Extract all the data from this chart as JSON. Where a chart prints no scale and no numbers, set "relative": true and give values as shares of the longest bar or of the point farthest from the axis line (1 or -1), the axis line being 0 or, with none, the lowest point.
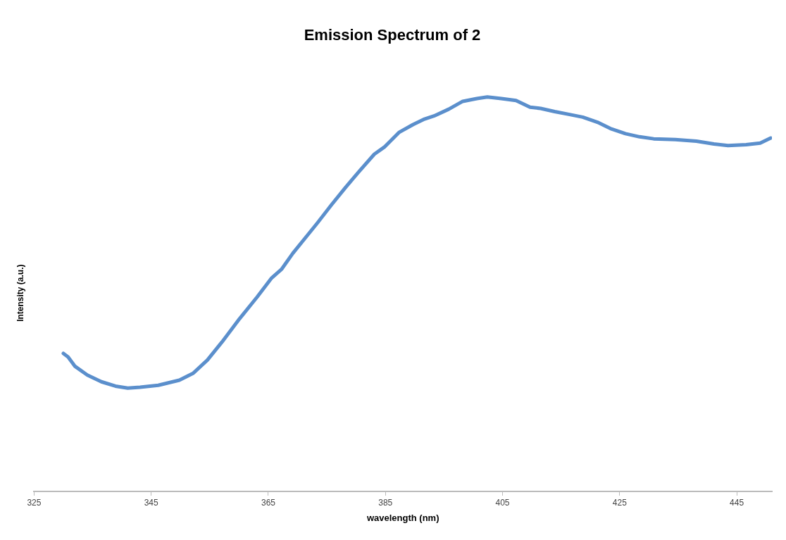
{
  "chart_data": {
    "type": "line",
    "title": "Emission Spectrum of 2",
    "xlabel": "wavelength (nm)",
    "ylabel": "Intensity (a.u.)",
    "relative": true,
    "xlim": [
      325,
      451
    ],
    "xticks": [
      325,
      345,
      365,
      385,
      405,
      425,
      445
    ],
    "legend": false,
    "marker": "none",
    "series": [
      {
        "color": "#5b8fcc",
        "x": [
          330.0,
          330.8,
          332.0,
          334.1,
          336.5,
          338.9,
          341.0,
          343.1,
          346.2,
          349.8,
          352.2,
          354.6,
          357.1,
          360.1,
          363.1,
          365.5,
          367.3,
          369.2,
          371.6,
          373.4,
          375.8,
          378.2,
          380.6,
          383.1,
          384.9,
          387.3,
          389.7,
          391.5,
          393.3,
          395.8,
          398.2,
          400.6,
          402.4,
          404.8,
          407.3,
          409.7,
          411.5,
          413.9,
          416.3,
          418.7,
          421.2,
          423.6,
          426.0,
          428.4,
          430.8,
          434.5,
          438.1,
          441.1,
          443.5,
          446.6,
          449.0,
          450.8
        ],
        "values": [
          0.35,
          0.341,
          0.317,
          0.295,
          0.278,
          0.267,
          0.262,
          0.264,
          0.269,
          0.282,
          0.3,
          0.333,
          0.379,
          0.438,
          0.493,
          0.54,
          0.564,
          0.604,
          0.648,
          0.681,
          0.727,
          0.771,
          0.813,
          0.855,
          0.874,
          0.91,
          0.93,
          0.943,
          0.952,
          0.969,
          0.989,
          0.996,
          1.0,
          0.996,
          0.991,
          0.974,
          0.971,
          0.963,
          0.956,
          0.949,
          0.936,
          0.919,
          0.907,
          0.899,
          0.894,
          0.892,
          0.888,
          0.881,
          0.877,
          0.879,
          0.883,
          0.896
        ]
      }
    ]
  }
}
